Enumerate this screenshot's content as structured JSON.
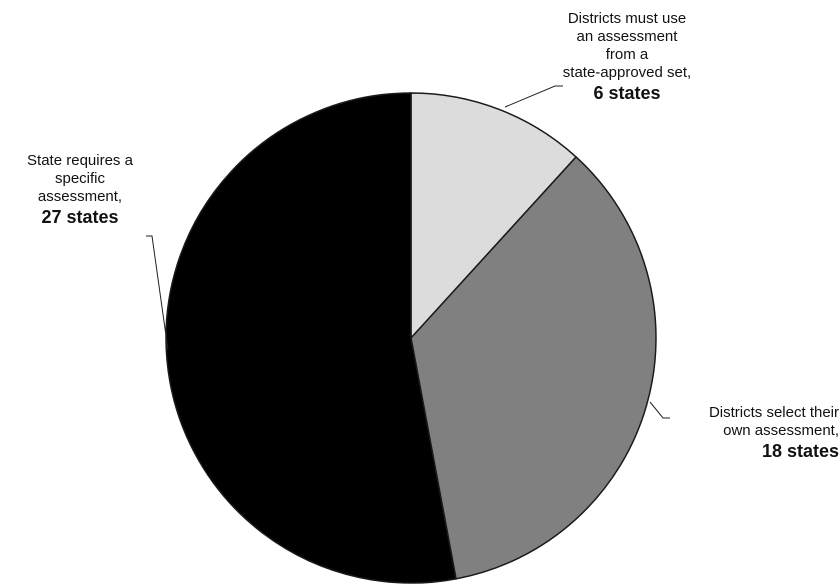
{
  "chart_data": {
    "type": "pie",
    "slices": [
      {
        "label_lines": [
          "Districts must use",
          "an assessment",
          "from a",
          "state-approved set,"
        ],
        "count_label": "6 states",
        "value": 6,
        "color": "#dcdcdc"
      },
      {
        "label_lines": [
          "Districts select their",
          "own assessment,"
        ],
        "count_label": "18 states",
        "value": 18,
        "color": "#808080"
      },
      {
        "label_lines": [
          "State requires a",
          "specific",
          "assessment,"
        ],
        "count_label": "27 states",
        "value": 27,
        "color": "#000000"
      }
    ],
    "start_angle_deg": 0,
    "direction": "clockwise",
    "edge_color": "#1a1a1a"
  }
}
